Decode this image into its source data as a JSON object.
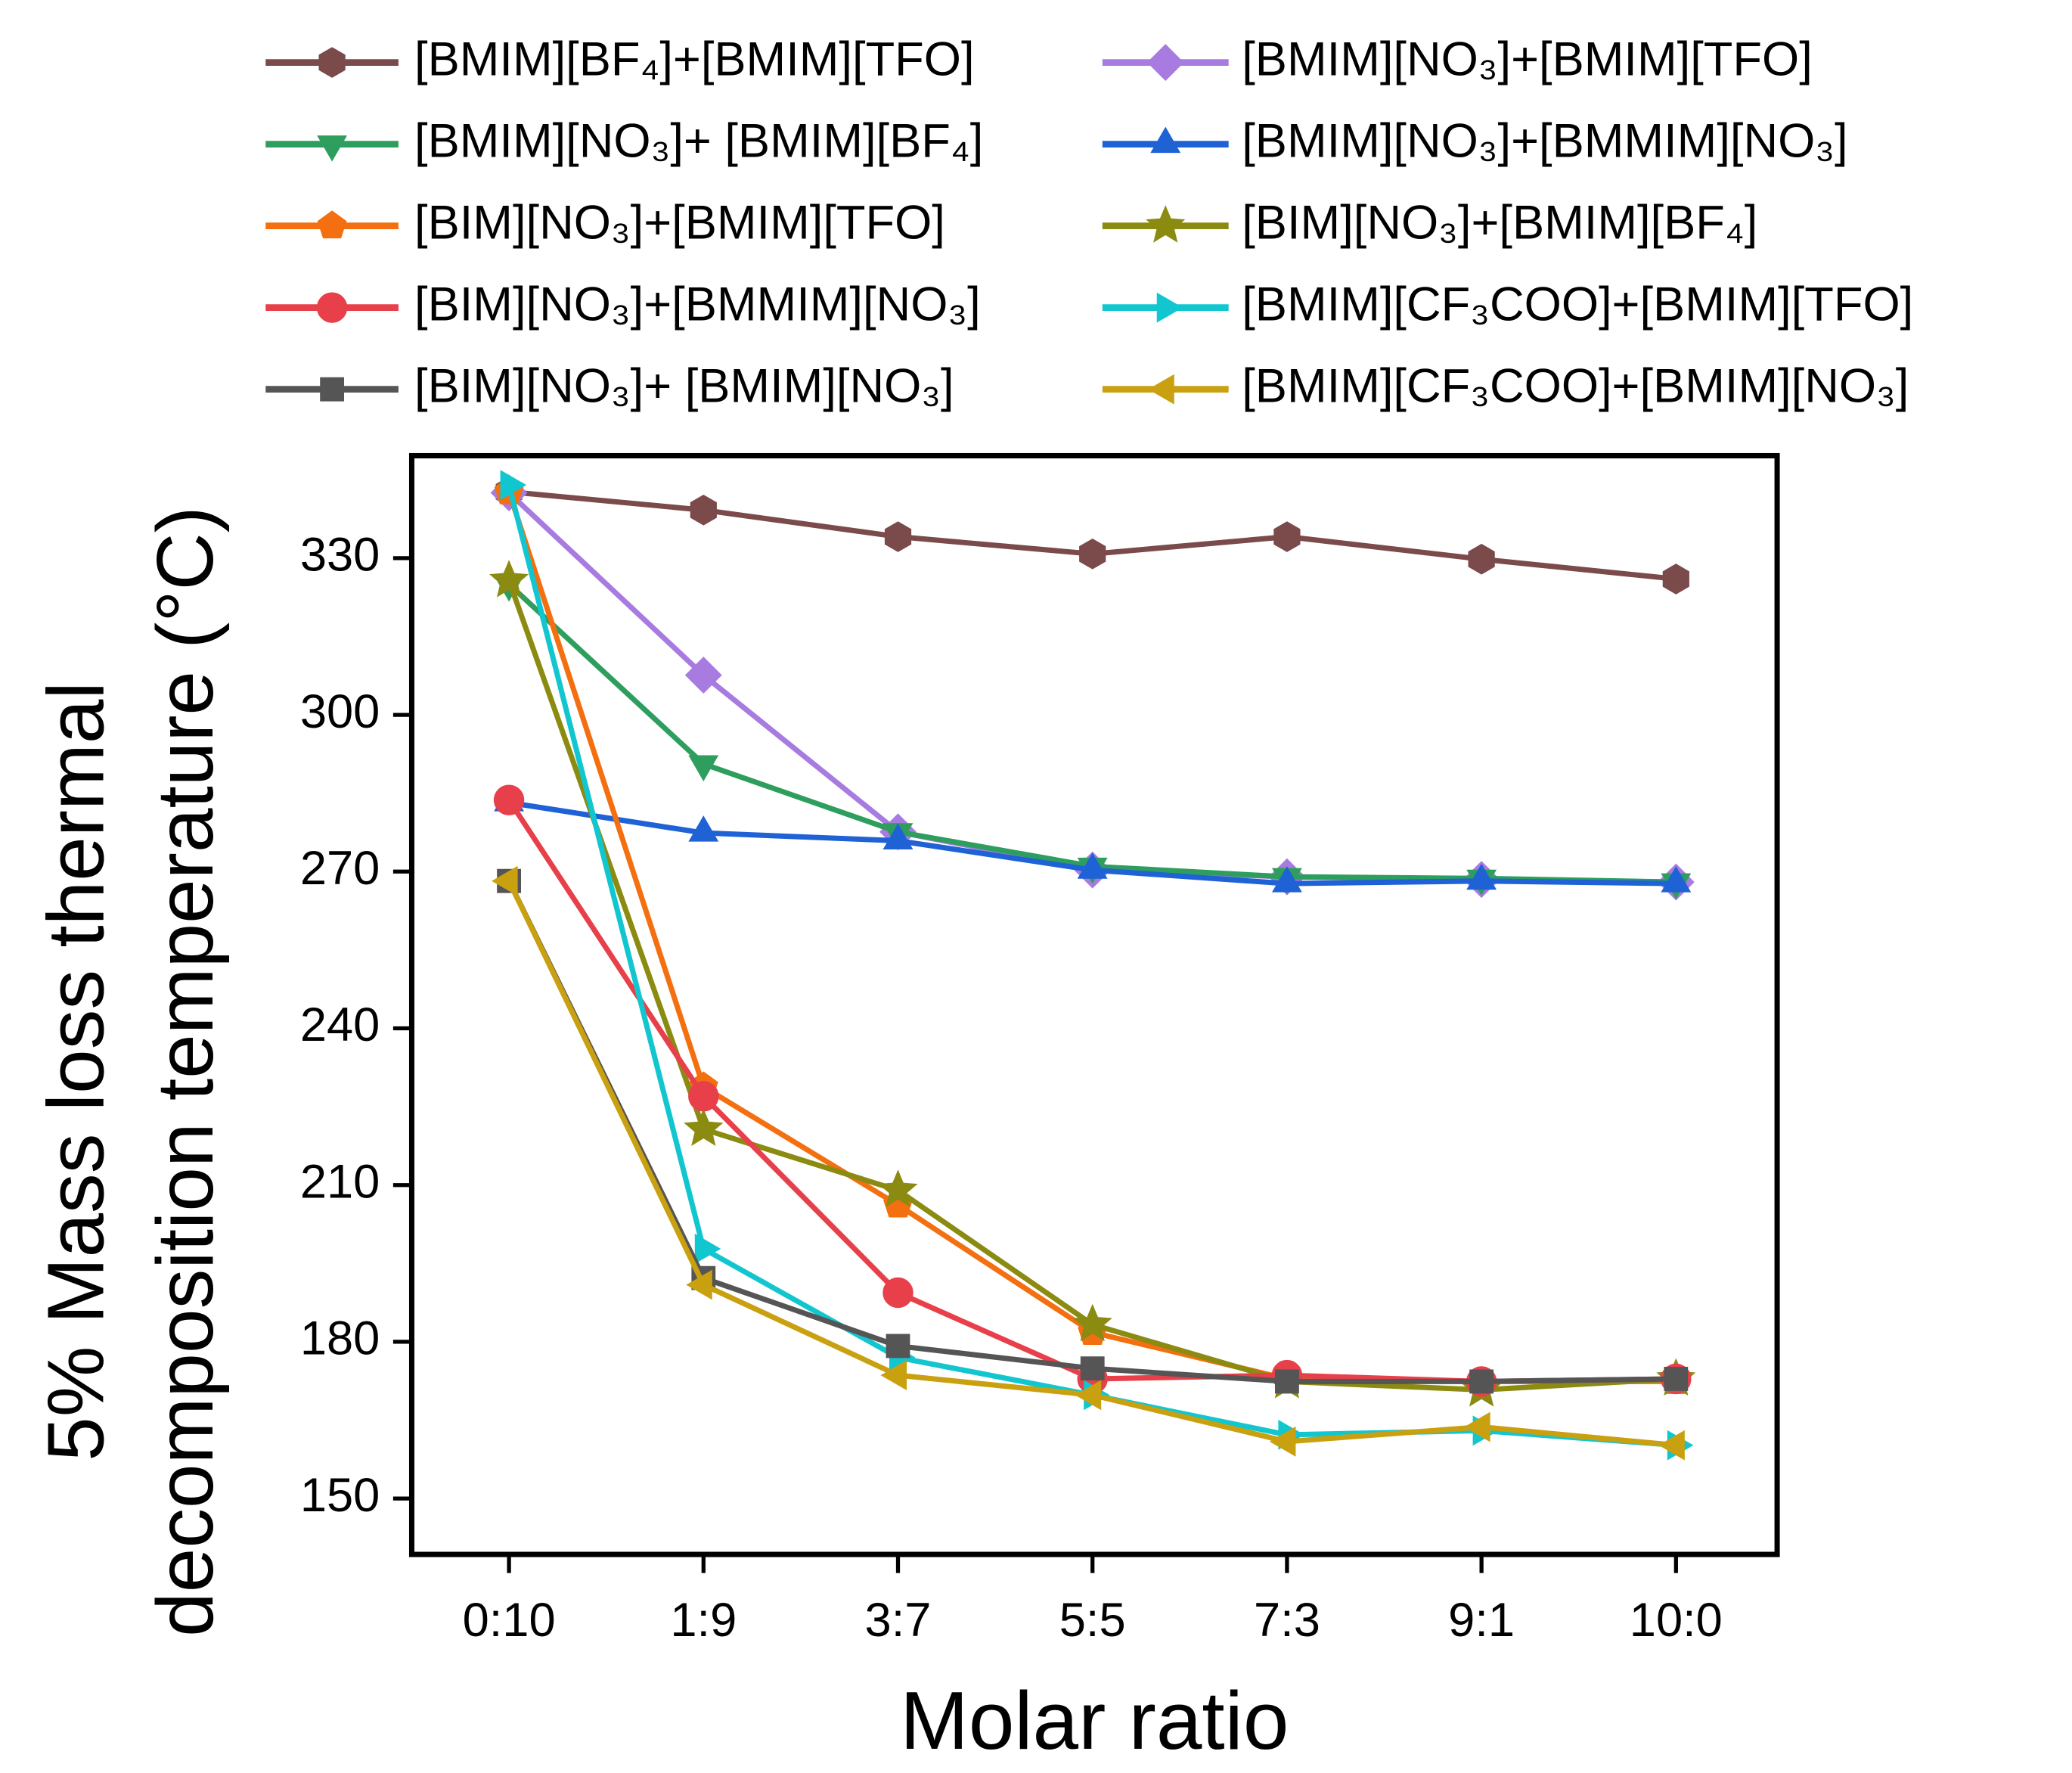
{
  "chart_data": {
    "type": "line",
    "xlabel": "Molar ratio",
    "ylabel": [
      "5% Mass loss thermal",
      "decomposition temperature (°C)"
    ],
    "categories": [
      "0:10",
      "1:9",
      "3:7",
      "5:5",
      "7:3",
      "9:1",
      "10:0"
    ],
    "ylim": [
      139.3,
      349.6
    ],
    "yticks": [
      150,
      180,
      210,
      240,
      270,
      300,
      330
    ],
    "legend": "top",
    "legend_columns": 2,
    "series": [
      {
        "name": "[BMIM][BF₄]+[BMIM][TFO]",
        "color": "#7b4a4a",
        "marker": "hexagon",
        "values": [
          342.7,
          339.2,
          334.1,
          330.8,
          334.1,
          329.8,
          326.0
        ]
      },
      {
        "name": "[BMIM][NO₃]+[BMIM][TFO]",
        "color": "#a87be0",
        "marker": "diamond",
        "values": [
          342.5,
          307.6,
          277.6,
          270.3,
          269.0,
          268.5,
          268.0
        ]
      },
      {
        "name": "[BMIM][NO₃]+ [BMIM][BF₄]",
        "color": "#2e9e5e",
        "marker": "triangle-down",
        "values": [
          325.0,
          290.6,
          277.6,
          271.0,
          269.0,
          268.7,
          268.0
        ]
      },
      {
        "name": "[BMIM][NO₃]+[BMMIM][NO₃]",
        "color": "#1f62d6",
        "marker": "triangle-up",
        "values": [
          283.2,
          277.4,
          275.9,
          270.3,
          267.7,
          268.2,
          267.7
        ]
      },
      {
        "name": "[BIM][NO₃]+[BMIM][TFO]",
        "color": "#f36f10",
        "marker": "pentagon",
        "values": [
          342.7,
          228.8,
          206.2,
          181.8,
          172.9,
          172.4,
          172.4
        ]
      },
      {
        "name": "[BIM][NO₃]+[BMIM][BF₄]",
        "color": "#8b8b12",
        "marker": "star",
        "values": [
          325.7,
          220.7,
          209.0,
          183.3,
          172.4,
          170.8,
          172.9
        ]
      },
      {
        "name": "[BIM][NO₃]+[BMMIM][NO₃]",
        "color": "#e8404a",
        "marker": "circle",
        "values": [
          283.7,
          227.0,
          189.4,
          172.9,
          173.6,
          172.4,
          172.9
        ]
      },
      {
        "name": "[BMIM][CF₃COO]+[BMIM][TFO]",
        "color": "#12c6d0",
        "marker": "triangle-right",
        "values": [
          344.0,
          197.8,
          177.0,
          169.8,
          162.2,
          163.0,
          160.2
        ]
      },
      {
        "name": "[BIM][NO₃]+ [BMIM][NO₃]",
        "color": "#555555",
        "marker": "square",
        "values": [
          268.2,
          192.2,
          179.2,
          174.9,
          172.4,
          172.4,
          172.9
        ]
      },
      {
        "name": "[BMIM][CF₃COO]+[BMIM][NO₃]",
        "color": "#c9a010",
        "marker": "triangle-left",
        "values": [
          268.2,
          190.9,
          173.6,
          169.8,
          160.9,
          163.7,
          160.2
        ]
      }
    ]
  }
}
